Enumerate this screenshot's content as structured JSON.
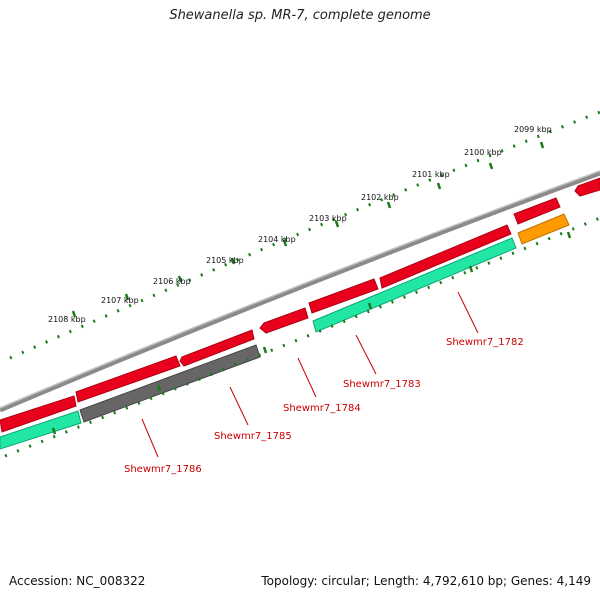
{
  "title": "Shewanella sp. MR-7, complete genome",
  "footer": {
    "accession": "Accession: NC_008322",
    "summary": "Topology: circular; Length: 4,792,610 bp; Genes: 4,149"
  },
  "scale_labels": [
    "2099 kbp",
    "2100 kbp",
    "2101 kbp",
    "2102 kbp",
    "2103 kbp",
    "2104 kbp",
    "2105 kbp",
    "2106 kbp",
    "2107 kbp",
    "2108 kbp"
  ],
  "gene_labels": [
    "Shewmr7_1782",
    "Shewmr7_1783",
    "Shewmr7_1784",
    "Shewmr7_1785",
    "Shewmr7_1786"
  ],
  "colors": {
    "backbone": "#8a8a8a",
    "cds_forward": "#e8001c",
    "cds_reverse": "#22e6a4",
    "cds_orange": "#ff9a00",
    "cds_gray": "#666666",
    "ticks": "#1a7a1a",
    "label_red": "#cc0000"
  }
}
